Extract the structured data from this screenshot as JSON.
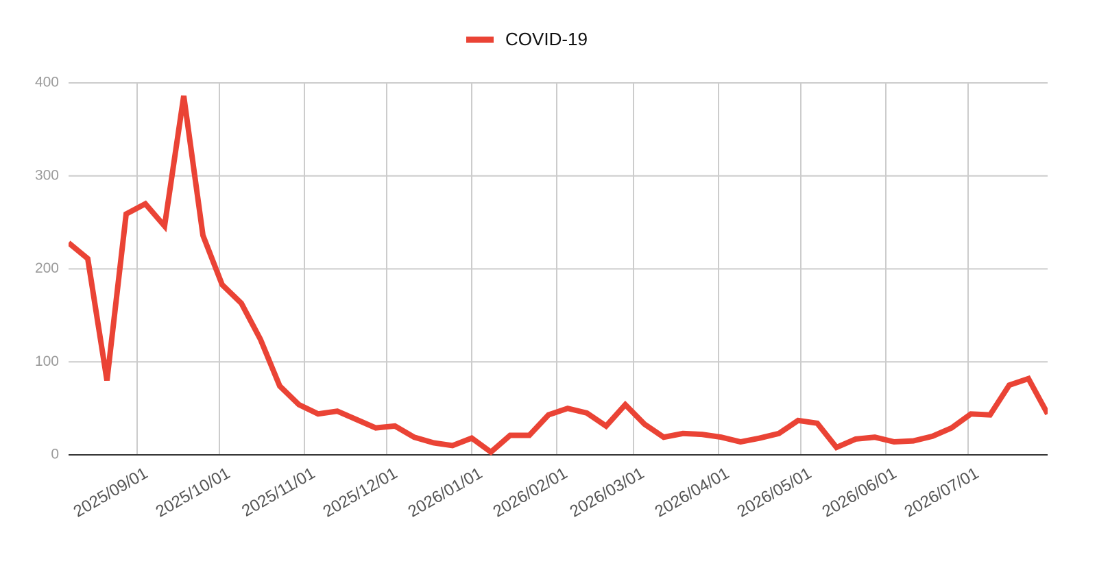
{
  "chart_data": {
    "type": "line",
    "x": [
      "2025/08/07",
      "2025/08/14",
      "2025/08/21",
      "2025/08/28",
      "2025/09/04",
      "2025/09/11",
      "2025/09/18",
      "2025/09/25",
      "2025/10/02",
      "2025/10/09",
      "2025/10/16",
      "2025/10/23",
      "2025/10/30",
      "2025/11/06",
      "2025/11/13",
      "2025/11/20",
      "2025/11/27",
      "2025/12/04",
      "2025/12/11",
      "2025/12/18",
      "2025/12/25",
      "2026/01/01",
      "2026/01/08",
      "2026/01/15",
      "2026/01/22",
      "2026/01/29",
      "2026/02/05",
      "2026/02/12",
      "2026/02/19",
      "2026/02/26",
      "2026/03/05",
      "2026/03/12",
      "2026/03/19",
      "2026/03/26",
      "2026/04/02",
      "2026/04/09",
      "2026/04/16",
      "2026/04/23",
      "2026/04/30",
      "2026/05/07",
      "2026/05/14",
      "2026/05/21",
      "2026/05/28",
      "2026/06/04",
      "2026/06/11",
      "2026/06/18",
      "2026/06/25",
      "2026/07/02",
      "2026/07/09",
      "2026/07/16",
      "2026/07/23",
      "2026/07/30"
    ],
    "series": [
      {
        "name": "COVID-19",
        "color": "#ea4335",
        "values": [
          228,
          211,
          80,
          259,
          270,
          246,
          386,
          236,
          183,
          163,
          124,
          74,
          54,
          44,
          47,
          38,
          29,
          31,
          19,
          13,
          10,
          18,
          3,
          21,
          21,
          43,
          50,
          45,
          31,
          54,
          33,
          19,
          23,
          22,
          19,
          14,
          18,
          23,
          37,
          34,
          8,
          17,
          19,
          14,
          15,
          20,
          29,
          44,
          43,
          75,
          82,
          44
        ]
      }
    ],
    "xlim": [
      "2025/08/07",
      "2026/07/30"
    ],
    "xticks": [
      "2025/09/01",
      "2025/10/01",
      "2025/11/01",
      "2025/12/01",
      "2026/01/01",
      "2026/02/01",
      "2026/03/01",
      "2026/04/01",
      "2026/05/01",
      "2026/06/01",
      "2026/07/01"
    ],
    "ylim": [
      0,
      400
    ],
    "yticks": [
      0,
      100,
      200,
      300,
      400
    ],
    "grid": true,
    "legend": "top"
  }
}
